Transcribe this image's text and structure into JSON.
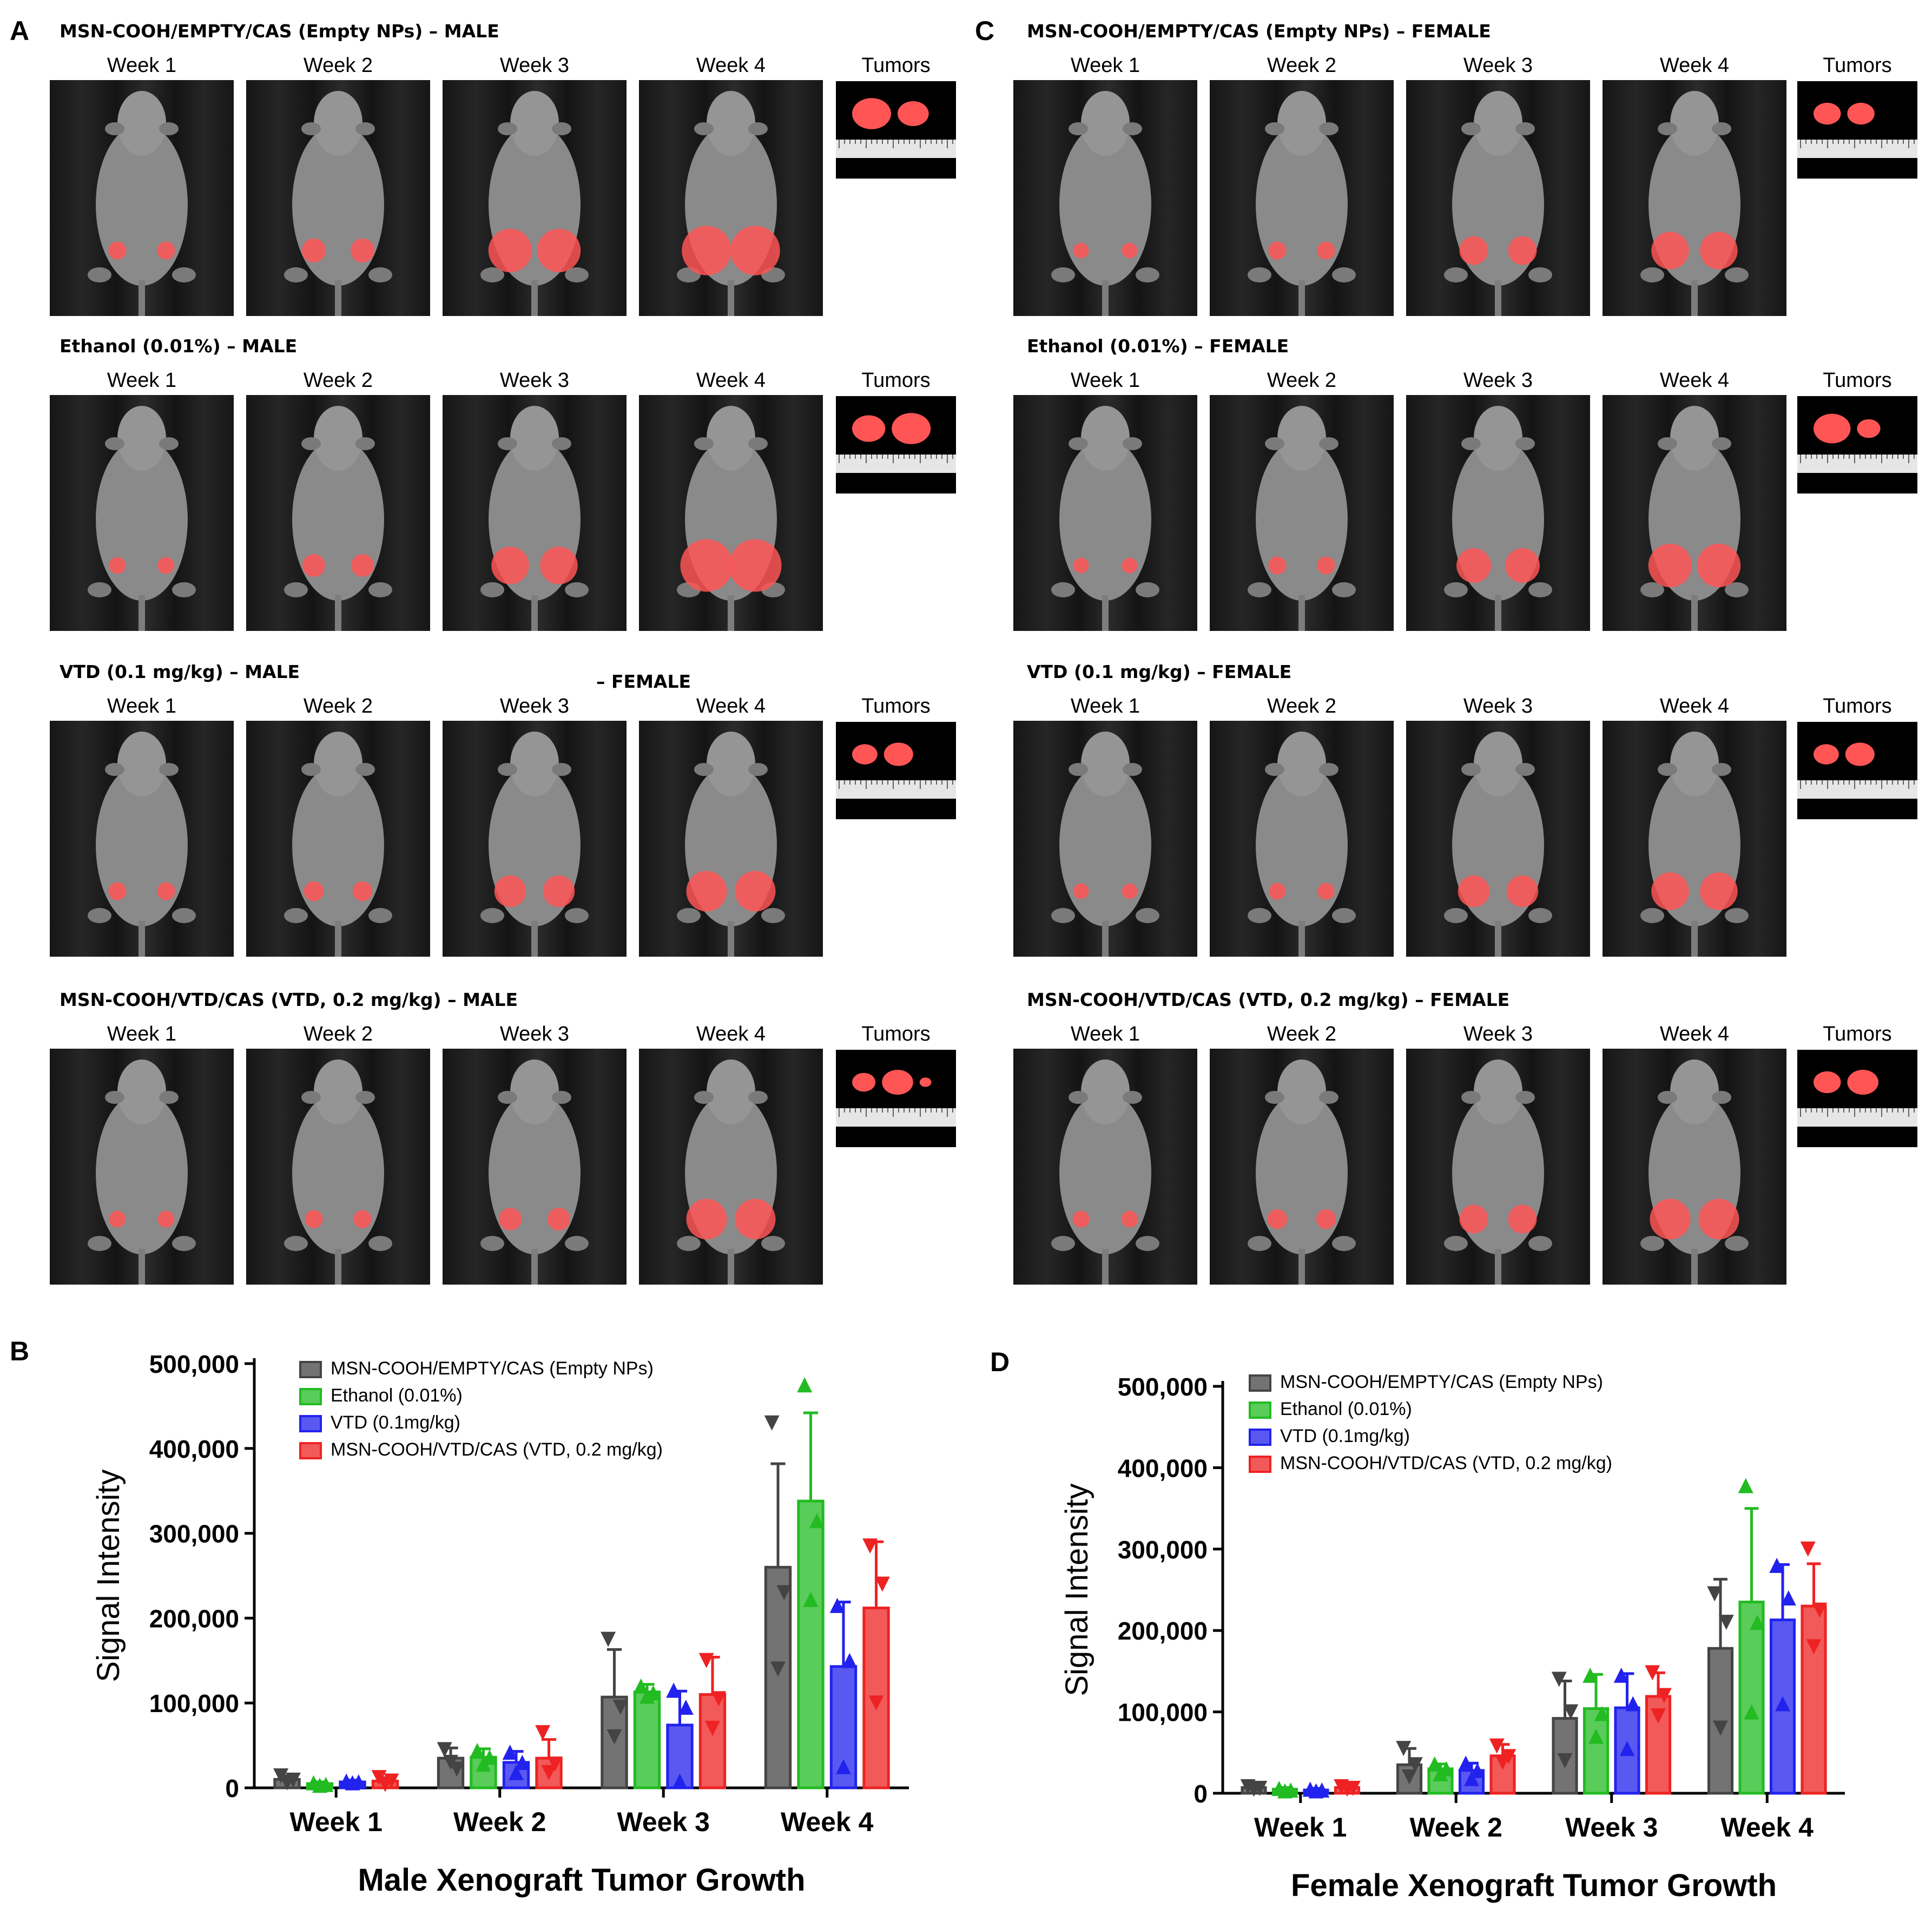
{
  "panels": {
    "A": "A",
    "B": "B",
    "C": "C",
    "D": "D"
  },
  "weeks": [
    "Week 1",
    "Week 2",
    "Week 3",
    "Week 4"
  ],
  "tumors_label": "Tumors",
  "stray_label": "– FEMALE",
  "male_groups": [
    {
      "title": "MSN-COOH/EMPTY/CAS (Empty NPs) – MALE",
      "tumor_sizes": [
        2,
        1.6
      ],
      "signal": [
        0.12,
        0.22,
        0.55,
        0.65
      ]
    },
    {
      "title": "Ethanol (0.01%) – MALE",
      "tumor_sizes": [
        1.7,
        2
      ],
      "signal": [
        0.1,
        0.2,
        0.45,
        0.7
      ]
    },
    {
      "title": "VTD (0.1 mg/kg) – MALE",
      "tumor_sizes": [
        1.3,
        1.5
      ],
      "signal": [
        0.12,
        0.15,
        0.35,
        0.5
      ]
    },
    {
      "title": "MSN-COOH/VTD/CAS (VTD, 0.2 mg/kg) – MALE",
      "tumor_sizes": [
        1.2,
        1.6,
        0.6
      ],
      "signal": [
        0.1,
        0.12,
        0.2,
        0.5
      ]
    }
  ],
  "female_groups": [
    {
      "title": "MSN-COOH/EMPTY/CAS (Empty NPs) – FEMALE",
      "tumor_sizes": [
        1.4,
        1.4
      ],
      "signal": [
        0.08,
        0.12,
        0.3,
        0.45
      ]
    },
    {
      "title": "Ethanol (0.01%) – FEMALE",
      "tumor_sizes": [
        1.9,
        1.2
      ],
      "signal": [
        0.08,
        0.12,
        0.4,
        0.55
      ]
    },
    {
      "title": "VTD (0.1 mg/kg) – FEMALE",
      "tumor_sizes": [
        1.3,
        1.5
      ],
      "signal": [
        0.08,
        0.1,
        0.35,
        0.45
      ]
    },
    {
      "title": "MSN-COOH/VTD/CAS (VTD, 0.2 mg/kg) – FEMALE",
      "tumor_sizes": [
        1.4,
        1.6
      ],
      "signal": [
        0.1,
        0.15,
        0.3,
        0.5
      ]
    }
  ],
  "colors": {
    "empty": "#444444",
    "ethanol": "#22bb22",
    "vtd": "#2222ee",
    "msnvtd": "#ee2222",
    "tumor": "#ff5555"
  },
  "chart_data": [
    {
      "type": "bar",
      "panel": "B",
      "title": "",
      "xlabel": "Male Xenograft Tumor Growth",
      "ylabel": "Signal Intensity",
      "ylim": [
        0,
        500000
      ],
      "yticks": [
        0,
        100000,
        200000,
        300000,
        400000,
        500000
      ],
      "ytick_labels": [
        "0",
        "100,000",
        "200,000",
        "300,000",
        "400,000",
        "500,000"
      ],
      "categories": [
        "Week 1",
        "Week 2",
        "Week 3",
        "Week 4"
      ],
      "legend_position": "top-left",
      "series": [
        {
          "name": "MSN-COOH/EMPTY/CAS (Empty NPs)",
          "color": "#444444",
          "marker": "triangle-down",
          "values": [
            10000,
            35000,
            107000,
            260000
          ],
          "errors": [
            4000,
            12000,
            56000,
            122000
          ],
          "points": [
            [
              14000,
              6000,
              9000
            ],
            [
              45000,
              30000,
              22000
            ],
            [
              175000,
              60000,
              95000
            ],
            [
              430000,
              140000,
              230000
            ]
          ]
        },
        {
          "name": "Ethanol (0.01%)",
          "color": "#22bb22",
          "marker": "triangle-up",
          "values": [
            5000,
            36000,
            113000,
            338000
          ],
          "errors": [
            2000,
            10000,
            9000,
            104000
          ],
          "points": [
            [
              6000,
              3000,
              4000
            ],
            [
              44000,
              28000,
              36000
            ],
            [
              120000,
              108000,
              112000
            ],
            [
              475000,
              222000,
              315000
            ]
          ]
        },
        {
          "name": "VTD (0.1mg/kg)",
          "color": "#2222ee",
          "marker": "triangle-up",
          "values": [
            7000,
            30000,
            74000,
            143000
          ],
          "errors": [
            2000,
            13000,
            40000,
            76000
          ],
          "points": [
            [
              8000,
              6000,
              7000
            ],
            [
              42000,
              18000,
              30000
            ],
            [
              115000,
              8000,
              95000
            ],
            [
              215000,
              25000,
              150000
            ]
          ]
        },
        {
          "name": "MSN-COOH/VTD/CAS (VTD, 0.2 mg/kg)",
          "color": "#ee2222",
          "marker": "triangle-down",
          "values": [
            8000,
            35000,
            110000,
            212000
          ],
          "errors": [
            4000,
            22000,
            44000,
            78000
          ],
          "points": [
            [
              12000,
              4000,
              8000
            ],
            [
              65000,
              18000,
              28000
            ],
            [
              150000,
              70000,
              105000
            ],
            [
              285000,
              100000,
              240000
            ]
          ]
        }
      ]
    },
    {
      "type": "bar",
      "panel": "D",
      "title": "",
      "xlabel": "Female Xenograft Tumor Growth",
      "ylabel": "Signal Intensity",
      "ylim": [
        0,
        500000
      ],
      "yticks": [
        0,
        100000,
        200000,
        300000,
        400000,
        500000
      ],
      "ytick_labels": [
        "0",
        "100,000",
        "200,000",
        "300,000",
        "400,000",
        "500,000"
      ],
      "categories": [
        "Week 1",
        "Week 2",
        "Week 3",
        "Week 4"
      ],
      "legend_position": "top-left",
      "series": [
        {
          "name": "MSN-COOH/EMPTY/CAS (Empty NPs)",
          "color": "#444444",
          "marker": "triangle-down",
          "values": [
            7000,
            35000,
            92000,
            178000
          ],
          "errors": [
            3000,
            20000,
            46000,
            85000
          ],
          "points": [
            [
              8000,
              5000,
              6000
            ],
            [
              55000,
              20000,
              35000
            ],
            [
              140000,
              40000,
              100000
            ],
            [
              245000,
              80000,
              210000
            ]
          ]
        },
        {
          "name": "Ethanol (0.01%)",
          "color": "#22bb22",
          "marker": "triangle-up",
          "values": [
            5000,
            30000,
            104000,
            235000
          ],
          "errors": [
            2000,
            6000,
            42000,
            115000
          ],
          "points": [
            [
              6000,
              3000,
              4000
            ],
            [
              36000,
              24000,
              30000
            ],
            [
              145000,
              70000,
              98000
            ],
            [
              378000,
              100000,
              210000
            ]
          ]
        },
        {
          "name": "VTD (0.1mg/kg)",
          "color": "#2222ee",
          "marker": "triangle-up",
          "values": [
            4000,
            28000,
            105000,
            213000
          ],
          "errors": [
            2000,
            9000,
            42000,
            68000
          ],
          "points": [
            [
              5000,
              3000,
              4000
            ],
            [
              37000,
              18000,
              28000
            ],
            [
              145000,
              55000,
              110000
            ],
            [
              280000,
              110000,
              240000
            ]
          ]
        },
        {
          "name": "MSN-COOH/VTD/CAS (VTD, 0.2 mg/kg)",
          "color": "#ee2222",
          "marker": "triangle-down",
          "values": [
            7000,
            46000,
            119000,
            230000
          ],
          "errors": [
            3000,
            14000,
            29000,
            52000
          ],
          "points": [
            [
              8000,
              5000,
              6000
            ],
            [
              58000,
              38000,
              45000
            ],
            [
              148000,
              95000,
              120000
            ],
            [
              300000,
              180000,
              225000
            ]
          ]
        }
      ]
    }
  ]
}
